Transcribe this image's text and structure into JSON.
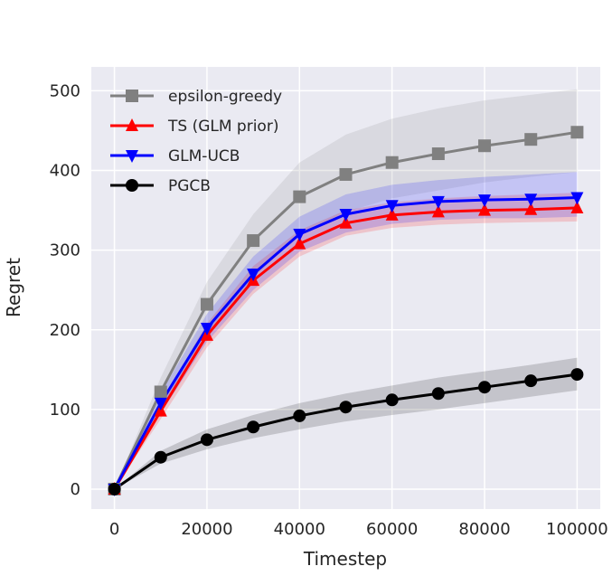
{
  "chart_data": {
    "type": "line",
    "title": "",
    "xlabel": "Timestep",
    "ylabel": "Regret",
    "xlim": [
      -5000,
      105000
    ],
    "ylim": [
      -25,
      530
    ],
    "xticks": [
      0,
      20000,
      40000,
      60000,
      80000,
      100000
    ],
    "xtick_labels": [
      "0",
      "20000",
      "40000",
      "60000",
      "80000",
      "100000"
    ],
    "yticks": [
      0,
      100,
      200,
      300,
      400,
      500
    ],
    "ytick_labels": [
      "0",
      "100",
      "200",
      "300",
      "400",
      "500"
    ],
    "grid": true,
    "legend_position": "top-left",
    "x": [
      0,
      10000,
      20000,
      30000,
      40000,
      50000,
      60000,
      70000,
      80000,
      90000,
      100000
    ],
    "series": [
      {
        "name": "epsilon-greedy",
        "color": "#808080",
        "marker": "square",
        "values": [
          0,
          122,
          232,
          312,
          367,
          395,
          410,
          421,
          431,
          439,
          448
        ],
        "band_low": [
          0,
          100,
          195,
          265,
          320,
          348,
          365,
          375,
          385,
          392,
          398
        ],
        "band_high": [
          0,
          140,
          260,
          345,
          410,
          445,
          465,
          478,
          488,
          495,
          502
        ]
      },
      {
        "name": "TS (GLM prior)",
        "color": "#ff0000",
        "marker": "triangle-up",
        "values": [
          0,
          98,
          193,
          262,
          308,
          334,
          344,
          348,
          350,
          351,
          353
        ],
        "band_low": [
          0,
          88,
          178,
          245,
          292,
          318,
          328,
          332,
          334,
          335,
          336
        ],
        "band_high": [
          0,
          108,
          208,
          280,
          325,
          350,
          360,
          365,
          368,
          370,
          372
        ]
      },
      {
        "name": "GLM-UCB",
        "color": "#0000ff",
        "marker": "triangle-down",
        "values": [
          0,
          108,
          202,
          270,
          320,
          345,
          356,
          361,
          363,
          364,
          366
        ],
        "band_low": [
          0,
          95,
          185,
          250,
          298,
          322,
          333,
          338,
          340,
          340,
          342
        ],
        "band_high": [
          0,
          120,
          220,
          292,
          342,
          370,
          382,
          388,
          392,
          395,
          398
        ]
      },
      {
        "name": "PGCB",
        "color": "#000000",
        "marker": "circle",
        "values": [
          0,
          40,
          62,
          78,
          92,
          103,
          112,
          120,
          128,
          136,
          144
        ],
        "band_low": [
          0,
          32,
          50,
          64,
          75,
          85,
          93,
          100,
          108,
          116,
          124
        ],
        "band_high": [
          0,
          48,
          75,
          93,
          108,
          120,
          130,
          140,
          148,
          156,
          165
        ]
      }
    ]
  }
}
